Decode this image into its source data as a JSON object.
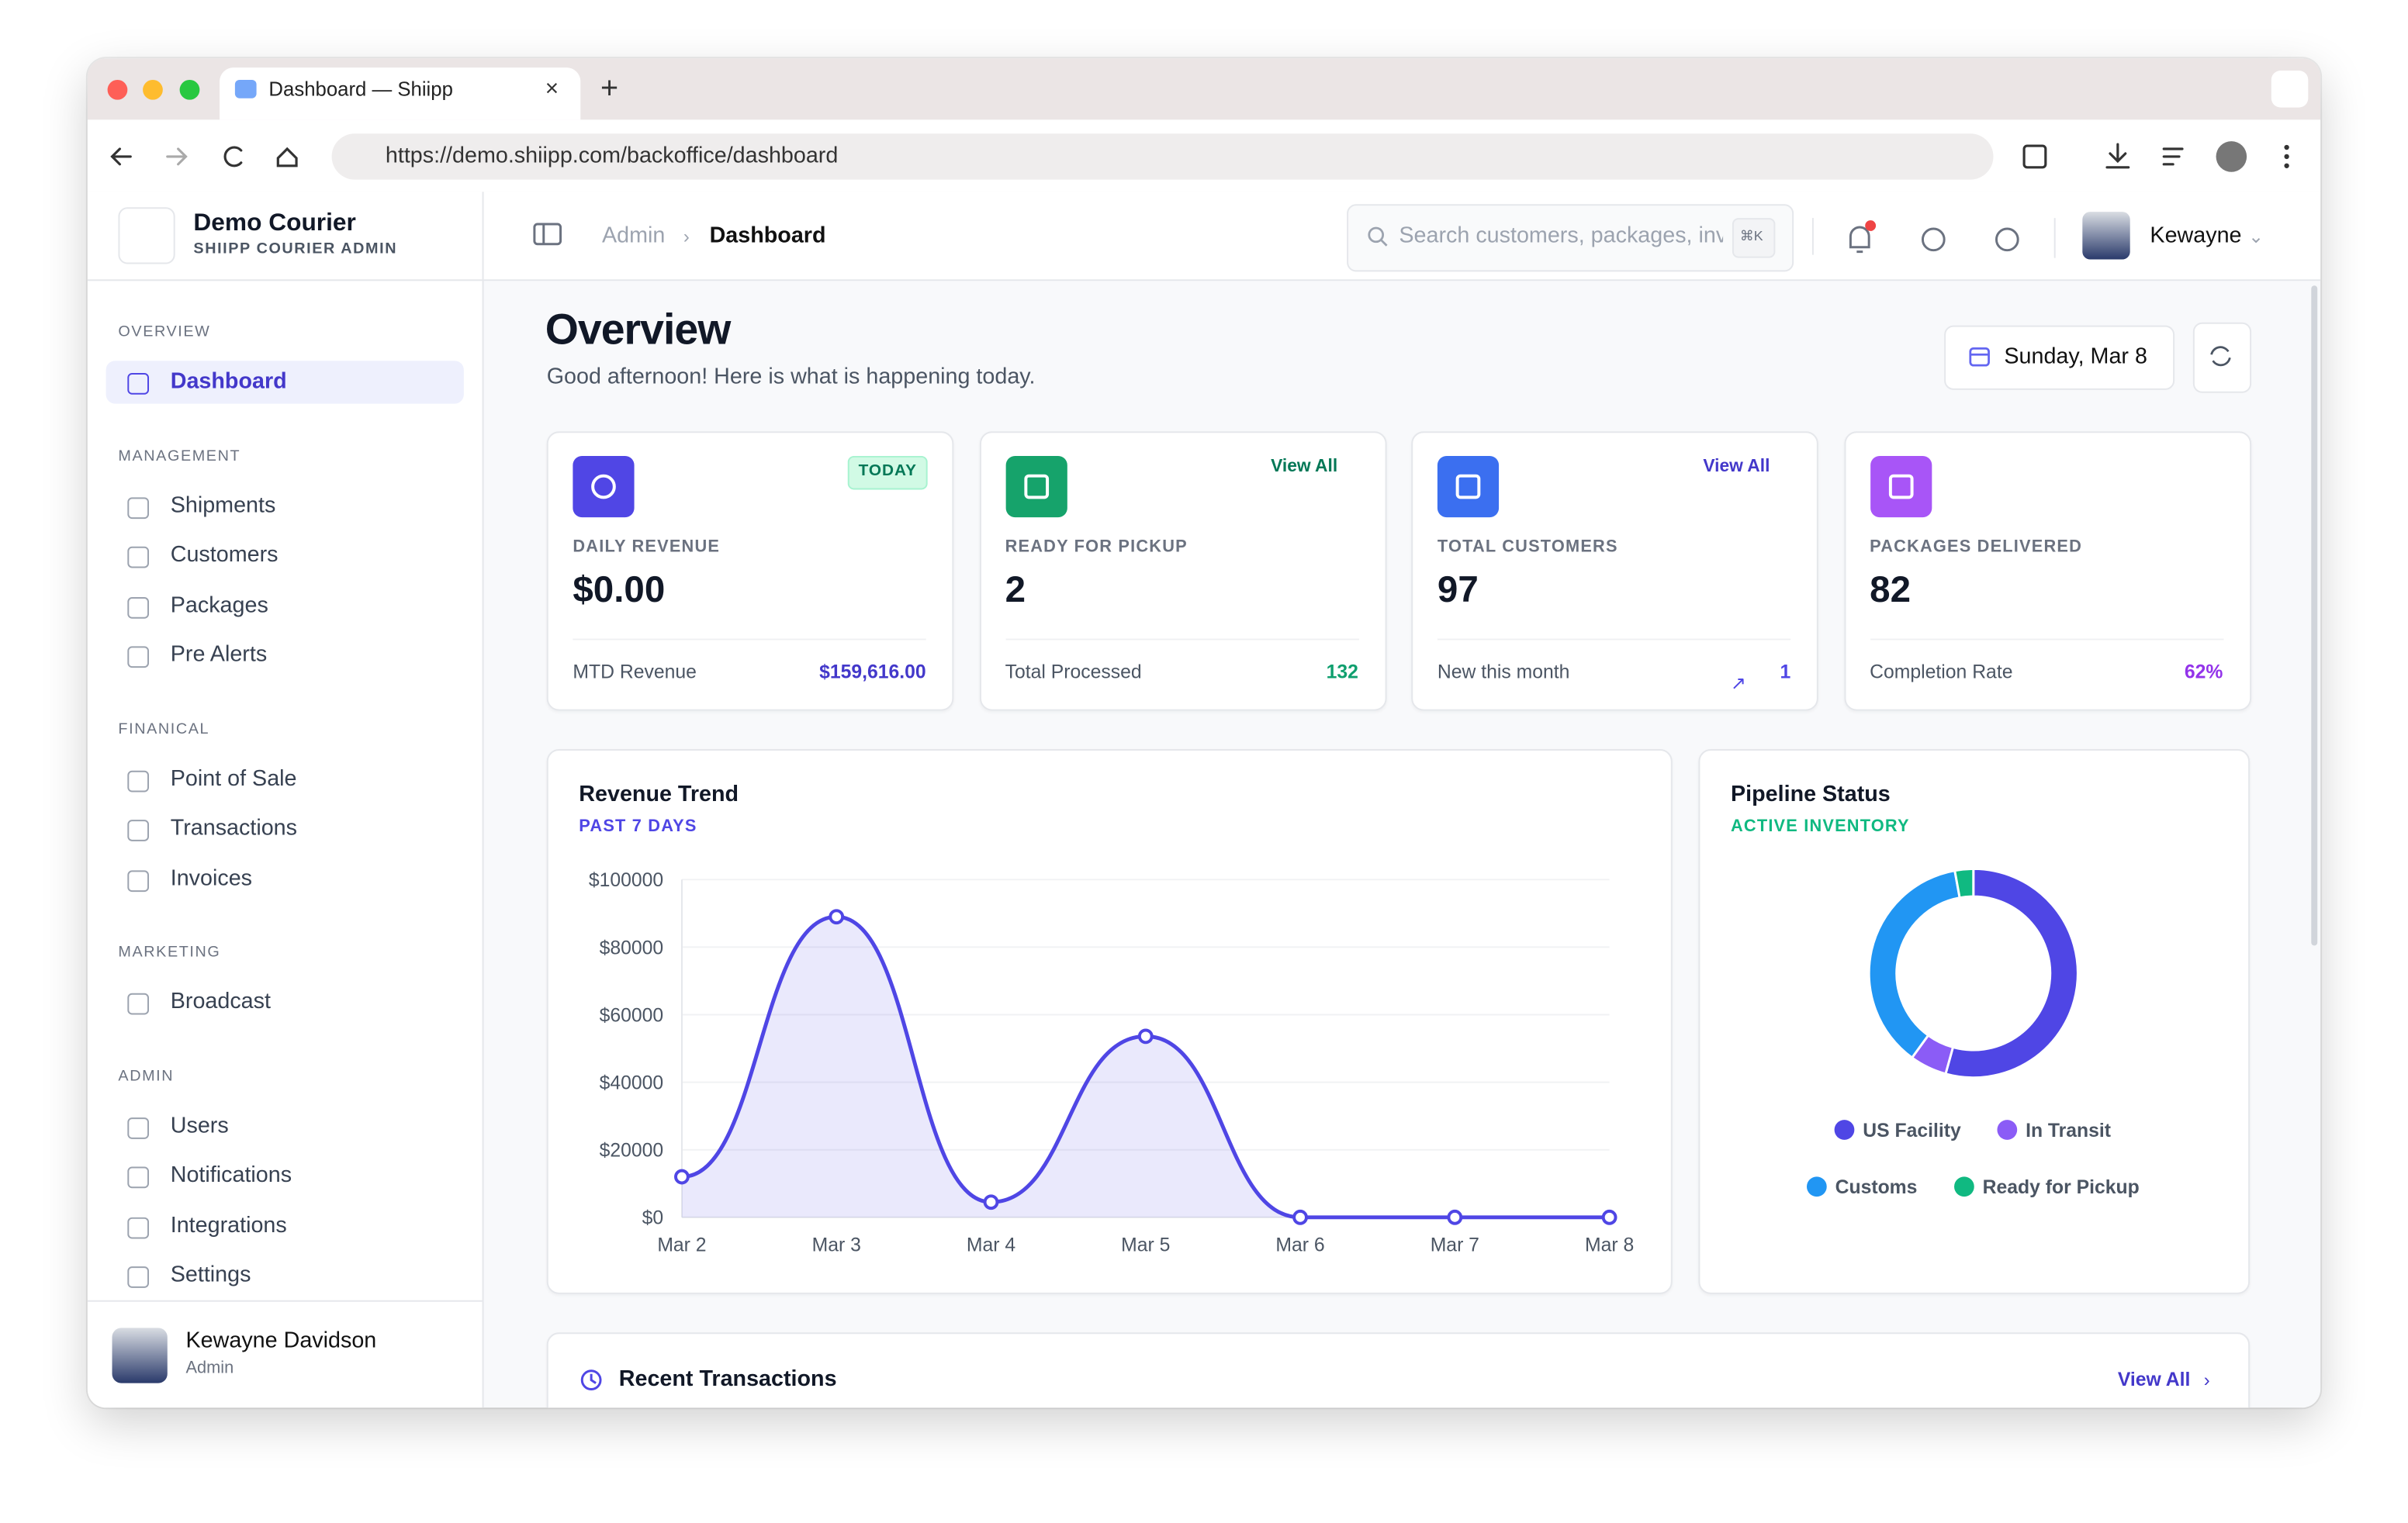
{
  "browser": {
    "tab_title": "Dashboard — Shiipp",
    "url": "https://demo.shiipp.com/backoffice/dashboard"
  },
  "sidebar": {
    "brand": "Demo Courier",
    "brand_subtitle": "SHIIPP COURIER ADMIN",
    "sections": [
      {
        "title": "OVERVIEW",
        "items": [
          "Dashboard"
        ]
      },
      {
        "title": "MANAGEMENT",
        "items": [
          "Shipments",
          "Customers",
          "Packages",
          "Pre Alerts"
        ]
      },
      {
        "title": "FINANICAL",
        "items": [
          "Point of Sale",
          "Transactions",
          "Invoices"
        ]
      },
      {
        "title": "MARKETING",
        "items": [
          "Broadcast"
        ]
      },
      {
        "title": "ADMIN",
        "items": [
          "Users",
          "Notifications",
          "Integrations",
          "Settings"
        ]
      }
    ],
    "user": {
      "name": "Kewayne Davidson",
      "role": "Admin"
    }
  },
  "header": {
    "breadcrumb": [
      "Admin",
      "Dashboard"
    ],
    "search_placeholder": "Search customers, packages, inv",
    "shortcut": "⌘K",
    "user": "Kewayne"
  },
  "page": {
    "title": "Overview",
    "subtitle": "Good afternoon! Here is what is happening today.",
    "date": "Sunday, Mar 8"
  },
  "stats": [
    {
      "badge": "TODAY",
      "label": "DAILY REVENUE",
      "value": "$0.00",
      "footer_label": "MTD Revenue",
      "footer_value": "$159,616.00"
    },
    {
      "link": "View All",
      "label": "READY FOR PICKUP",
      "value": "2",
      "footer_label": "Total Processed",
      "footer_value": "132"
    },
    {
      "link": "View All",
      "label": "TOTAL CUSTOMERS",
      "value": "97",
      "footer_label": "New this month",
      "footer_value": "1"
    },
    {
      "label": "PACKAGES DELIVERED",
      "value": "82",
      "footer_label": "Completion Rate",
      "footer_value": "62%"
    }
  ],
  "chart_data": [
    {
      "type": "line",
      "title": "Revenue Trend",
      "subtitle": "PAST 7 DAYS",
      "categories": [
        "Mar 2",
        "Mar 3",
        "Mar 4",
        "Mar 5",
        "Mar 6",
        "Mar 7",
        "Mar 8"
      ],
      "values": [
        12000,
        89000,
        4500,
        53600,
        0,
        0,
        0
      ],
      "color": "#4f46e5",
      "ylim": [
        0,
        100000
      ],
      "yticks": [
        {
          "value": 0,
          "label": "$0"
        },
        {
          "value": 20000,
          "label": "$20000"
        },
        {
          "value": 40000,
          "label": "$40000"
        },
        {
          "value": 60000,
          "label": "$60000"
        },
        {
          "value": 80000,
          "label": "$80000"
        },
        {
          "value": 100000,
          "label": "$100000"
        }
      ],
      "grid": true
    },
    {
      "type": "pie",
      "title": "Pipeline Status",
      "subtitle": "ACTIVE INVENTORY",
      "categories": [
        "US Facility",
        "In Transit",
        "Customs",
        "Ready for Pickup"
      ],
      "values": [
        38,
        4,
        26,
        2
      ],
      "colors": [
        "#4f46e5",
        "#8b5cf6",
        "#2196f3",
        "#10b981"
      ],
      "donut": true
    }
  ],
  "recent": {
    "title": "Recent Transactions",
    "link": "View All"
  }
}
